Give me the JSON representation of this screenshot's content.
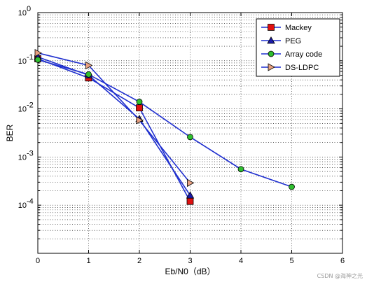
{
  "chart_data": {
    "type": "line",
    "xlabel": "Eb/N0（dB）",
    "ylabel": "BER",
    "xlim": [
      0,
      6
    ],
    "ylim": [
      1e-05,
      1
    ],
    "yscale": "log",
    "grid": true,
    "legend_position": "top-right",
    "x_ticks": [
      0,
      1,
      2,
      3,
      4,
      5,
      6
    ],
    "y_ticks": [
      {
        "value": 1,
        "base": "10",
        "exp": "0"
      },
      {
        "value": 0.1,
        "base": "10",
        "exp": "-1"
      },
      {
        "value": 0.01,
        "base": "10",
        "exp": "-2"
      },
      {
        "value": 0.001,
        "base": "10",
        "exp": "-3"
      },
      {
        "value": 0.0001,
        "base": "10",
        "exp": "-4"
      }
    ],
    "line_color": "#1f2fcf",
    "series": [
      {
        "name": "Mackey",
        "marker": "square",
        "fill": "#e01010",
        "x": [
          0,
          1,
          2,
          3
        ],
        "y": [
          0.11,
          0.044,
          0.0105,
          0.00012
        ]
      },
      {
        "name": "PEG",
        "marker": "triangle-up",
        "fill": "#1a1aa8",
        "x": [
          0,
          1,
          2,
          3
        ],
        "y": [
          0.12,
          0.05,
          0.0062,
          0.00016
        ]
      },
      {
        "name": "Array code",
        "marker": "circle",
        "fill": "#2fbf2f",
        "x": [
          0,
          1,
          2,
          3,
          4,
          5
        ],
        "y": [
          0.105,
          0.052,
          0.014,
          0.0026,
          0.00056,
          0.00024
        ]
      },
      {
        "name": "DS-LDPC",
        "marker": "triangle-right",
        "fill": "#e8a080",
        "x": [
          0,
          1,
          2,
          3
        ],
        "y": [
          0.145,
          0.08,
          0.0058,
          0.00029
        ]
      }
    ]
  },
  "watermark": "CSDN @海神之光"
}
